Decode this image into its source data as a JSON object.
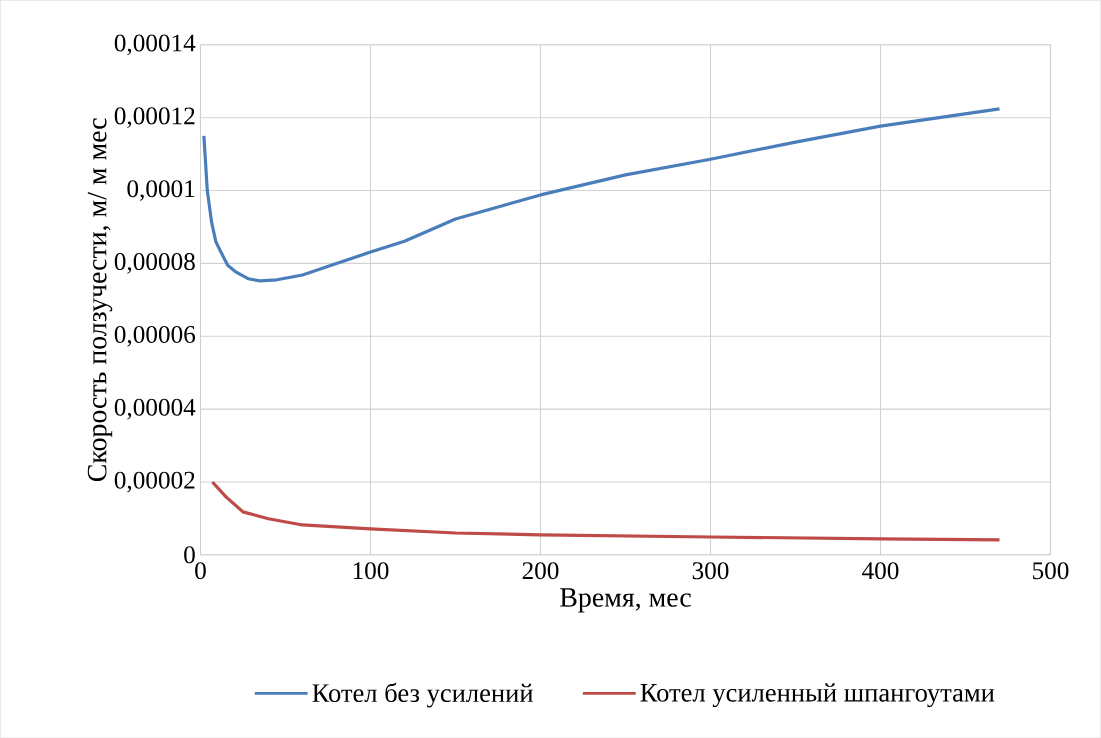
{
  "chart_data": {
    "type": "line",
    "xlabel": "Время, мес",
    "ylabel": "Скорость ползучести, м/ м мес",
    "xlim": [
      0,
      500
    ],
    "xticks": [
      0,
      100,
      200,
      300,
      400,
      500
    ],
    "ylim": [
      0,
      0.00014
    ],
    "yticks": [
      {
        "value": 0,
        "label": "0"
      },
      {
        "value": 2e-05,
        "label": "0,00002"
      },
      {
        "value": 4e-05,
        "label": "0,00004"
      },
      {
        "value": 6e-05,
        "label": "0,00006"
      },
      {
        "value": 8e-05,
        "label": "0,00008"
      },
      {
        "value": 0.0001,
        "label": "0,0001"
      },
      {
        "value": 0.00012,
        "label": "0,00012"
      },
      {
        "value": 0.00014,
        "label": "0,00014"
      }
    ],
    "grid": true,
    "legend": "bottom",
    "marker": "none",
    "line_style": "solid",
    "series": [
      {
        "name": "Котел без усилений",
        "color": "#4a7ebb",
        "x": [
          2,
          4,
          6.5,
          9,
          12,
          16,
          21,
          28,
          35,
          45,
          60,
          80,
          100,
          120,
          150,
          200,
          250,
          300,
          350,
          400,
          470
        ],
        "values": [
          0.000115,
          0.0001,
          9.14e-05,
          8.6e-05,
          8.31e-05,
          7.95e-05,
          7.76e-05,
          7.58e-05,
          7.52e-05,
          7.55e-05,
          7.68e-05,
          8e-05,
          8.31e-05,
          8.61e-05,
          9.22e-05,
          9.88e-05,
          0.0001043,
          0.0001086,
          0.0001133,
          0.0001177,
          0.0001224
        ]
      },
      {
        "name": "Котел усиленный шпангоутами",
        "color": "#be4b48",
        "x": [
          7,
          15,
          25,
          40,
          60,
          100,
          150,
          200,
          300,
          400,
          470
        ],
        "values": [
          2e-05,
          1.59e-05,
          1.18e-05,
          9.9e-06,
          8.2e-06,
          7.1e-06,
          6e-06,
          5.5e-06,
          4.9e-06,
          4.4e-06,
          4.1e-06
        ]
      }
    ]
  }
}
